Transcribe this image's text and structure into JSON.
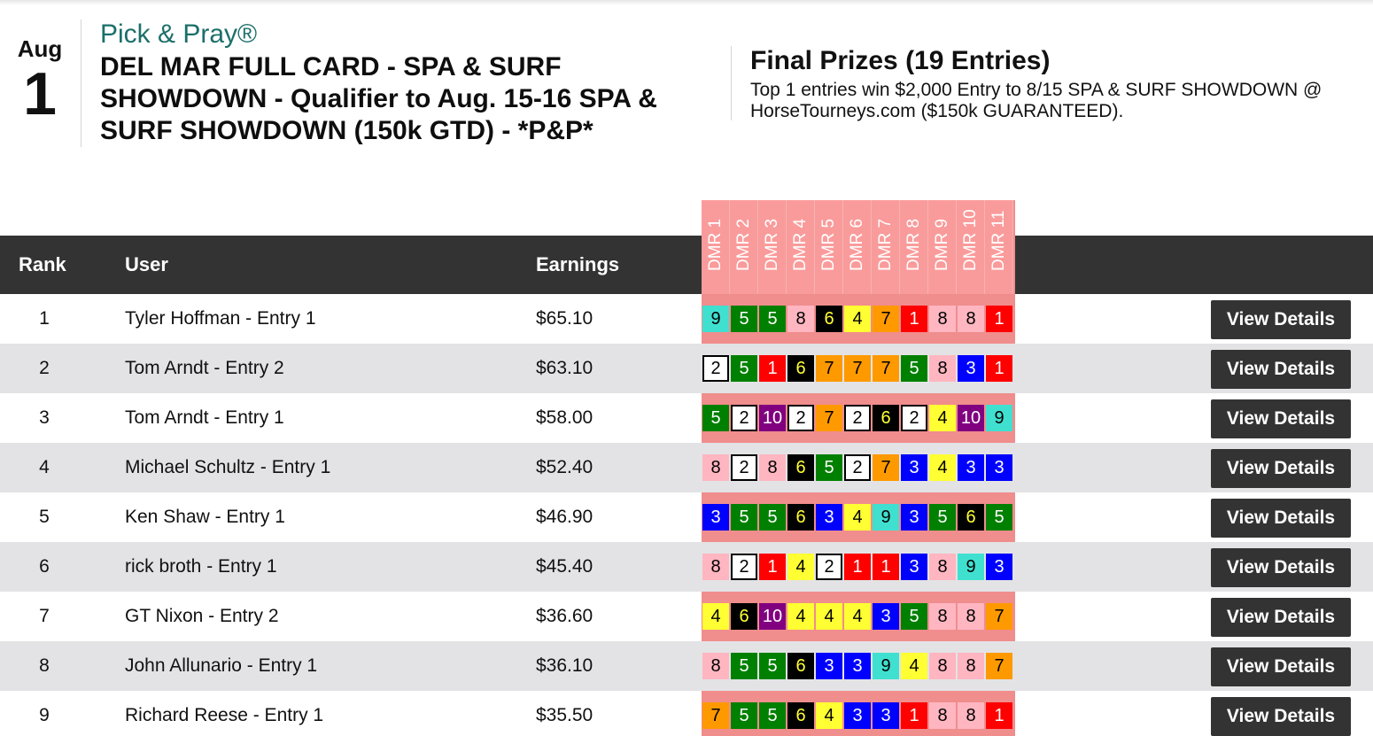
{
  "event": {
    "month": "Aug",
    "day": "1",
    "brand": "Pick & Pray®",
    "title": "DEL MAR FULL CARD - SPA & SURF SHOWDOWN - Qualifier to Aug. 15-16 SPA & SURF SHOWDOWN (150k GTD) - *P&P*"
  },
  "prizes": {
    "title": "Final Prizes (19 Entries)",
    "text": "Top 1 entries win $2,000 Entry to 8/15 SPA & SURF SHOWDOWN @ HorseTourneys.com ($150k GUARANTEED)."
  },
  "table": {
    "headers": {
      "rank": "Rank",
      "user": "User",
      "earnings": "Earnings"
    },
    "races": [
      "DMR 1",
      "DMR 2",
      "DMR 3",
      "DMR 4",
      "DMR 5",
      "DMR 6",
      "DMR 7",
      "DMR 8",
      "DMR 9",
      "DMR 10",
      "DMR 11"
    ],
    "button_label": "View Details",
    "rows": [
      {
        "rank": "1",
        "user": "Tyler Hoffman - Entry 1",
        "earnings": "$65.10",
        "picks": [
          "9",
          "5",
          "5",
          "8",
          "6",
          "4",
          "7",
          "1",
          "8",
          "8",
          "1"
        ]
      },
      {
        "rank": "2",
        "user": "Tom Arndt - Entry 2",
        "earnings": "$63.10",
        "picks": [
          "2",
          "5",
          "1",
          "6",
          "7",
          "7",
          "7",
          "5",
          "8",
          "3",
          "1"
        ]
      },
      {
        "rank": "3",
        "user": "Tom Arndt - Entry 1",
        "earnings": "$58.00",
        "picks": [
          "5",
          "2",
          "10",
          "2",
          "7",
          "2",
          "6",
          "2",
          "4",
          "10",
          "9"
        ]
      },
      {
        "rank": "4",
        "user": "Michael Schultz - Entry 1",
        "earnings": "$52.40",
        "picks": [
          "8",
          "2",
          "8",
          "6",
          "5",
          "2",
          "7",
          "3",
          "4",
          "3",
          "3"
        ]
      },
      {
        "rank": "5",
        "user": "Ken Shaw - Entry 1",
        "earnings": "$46.90",
        "picks": [
          "3",
          "5",
          "5",
          "6",
          "3",
          "4",
          "9",
          "3",
          "5",
          "6",
          "5"
        ]
      },
      {
        "rank": "6",
        "user": "rick broth - Entry 1",
        "earnings": "$45.40",
        "picks": [
          "8",
          "2",
          "1",
          "4",
          "2",
          "1",
          "1",
          "3",
          "8",
          "9",
          "3"
        ]
      },
      {
        "rank": "7",
        "user": "GT Nixon - Entry 2",
        "earnings": "$36.60",
        "picks": [
          "4",
          "6",
          "10",
          "4",
          "4",
          "4",
          "3",
          "5",
          "8",
          "8",
          "7"
        ]
      },
      {
        "rank": "8",
        "user": "John Allunario - Entry 1",
        "earnings": "$36.10",
        "picks": [
          "8",
          "5",
          "5",
          "6",
          "3",
          "3",
          "9",
          "4",
          "8",
          "8",
          "7"
        ]
      },
      {
        "rank": "9",
        "user": "Richard Reese - Entry 1",
        "earnings": "$35.50",
        "picks": [
          "7",
          "5",
          "5",
          "6",
          "4",
          "3",
          "3",
          "1",
          "8",
          "8",
          "1"
        ]
      }
    ]
  },
  "saddle_cloth_colors": {
    "1": {
      "bg": "#ff0000",
      "fg": "#ffffff"
    },
    "2": {
      "bg": "#ffffff",
      "fg": "#000000",
      "border": "#000000"
    },
    "3": {
      "bg": "#0000ff",
      "fg": "#ffffff"
    },
    "4": {
      "bg": "#ffff33",
      "fg": "#000000"
    },
    "5": {
      "bg": "#008000",
      "fg": "#ffffff"
    },
    "6": {
      "bg": "#000000",
      "fg": "#ffff33"
    },
    "7": {
      "bg": "#ff9900",
      "fg": "#000000"
    },
    "8": {
      "bg": "#ffb6c1",
      "fg": "#000000"
    },
    "9": {
      "bg": "#40e0d0",
      "fg": "#000000"
    },
    "10": {
      "bg": "#800080",
      "fg": "#ffffff"
    }
  }
}
